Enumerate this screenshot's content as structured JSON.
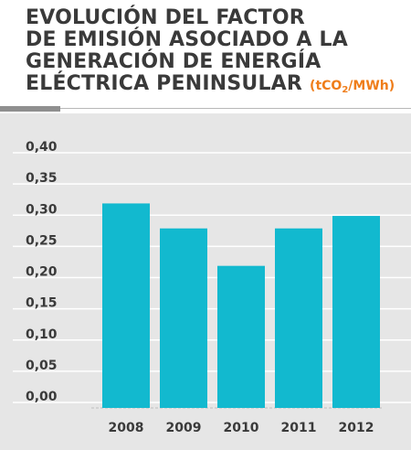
{
  "title": {
    "lines": [
      "EVOLUCIÓN DEL FACTOR",
      "DE EMISIÓN ASOCIADO A LA",
      "GENERACIÓN DE ENERGÍA",
      "ELÉCTRICA PENINSULAR"
    ],
    "unit_prefix": "(tCO",
    "unit_sub": "2",
    "unit_suffix": "/MWh)"
  },
  "colors": {
    "bar": "#12b9cf",
    "title": "#3a3a3a",
    "unit": "#ef7d1a",
    "background": "#e6e6e6",
    "gridline": "#ffffff",
    "axis_text": "#3a3a3a"
  },
  "chart_data": {
    "type": "bar",
    "categories": [
      "2008",
      "2009",
      "2010",
      "2011",
      "2012"
    ],
    "values": [
      0.31,
      0.27,
      0.21,
      0.27,
      0.29
    ],
    "ylim": [
      0,
      0.4
    ],
    "yticks": [
      "0,00",
      "0,05",
      "0,10",
      "0,15",
      "0,20",
      "0,25",
      "0,30",
      "0,35",
      "0,40"
    ],
    "grid": true,
    "legend": "none"
  }
}
